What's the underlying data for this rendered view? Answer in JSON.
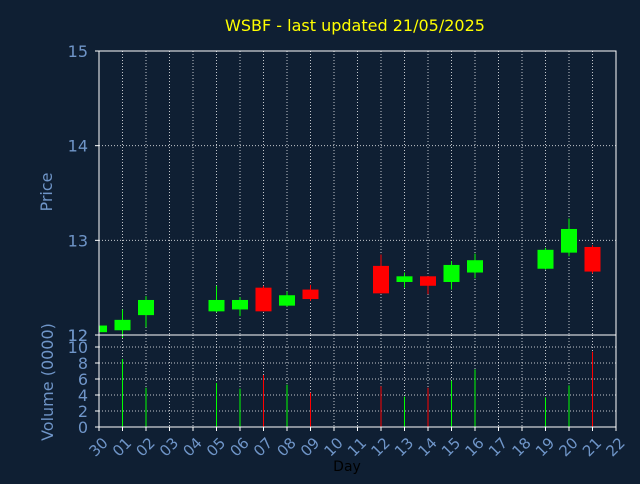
{
  "colors": {
    "background": "#0f1f33",
    "title": "#ffff00",
    "axis_text": "#6f95c8",
    "frame": "#ffffff",
    "grid": "#ffffff",
    "day_label": "#000000",
    "up": "#00ff00",
    "down": "#ff0000"
  },
  "chart_data": [
    {
      "type": "candlestick",
      "title": "WSBF - last updated 21/05/2025",
      "ylabel": "Price",
      "ylim": [
        12,
        15
      ],
      "yticks": [
        "12",
        "13",
        "14",
        "15"
      ],
      "xticks": [
        "30",
        "01",
        "02",
        "03",
        "04",
        "05",
        "06",
        "07",
        "08",
        "09",
        "10",
        "11",
        "12",
        "13",
        "14",
        "15",
        "16",
        "17",
        "18",
        "19",
        "20",
        "21",
        "22"
      ],
      "grid": true,
      "candles": [
        {
          "day": "30",
          "open": 12.03,
          "high": 12.1,
          "low": 12.01,
          "close": 12.1
        },
        {
          "day": "01",
          "open": 12.05,
          "high": 12.27,
          "low": 11.97,
          "close": 12.16
        },
        {
          "day": "02",
          "open": 12.21,
          "high": 12.41,
          "low": 12.08,
          "close": 12.37
        },
        {
          "day": "05",
          "open": 12.25,
          "high": 12.52,
          "low": 12.24,
          "close": 12.37
        },
        {
          "day": "06",
          "open": 12.27,
          "high": 12.4,
          "low": 12.2,
          "close": 12.37
        },
        {
          "day": "07",
          "open": 12.5,
          "high": 12.52,
          "low": 12.25,
          "close": 12.25
        },
        {
          "day": "08",
          "open": 12.31,
          "high": 12.46,
          "low": 12.3,
          "close": 12.42
        },
        {
          "day": "09",
          "open": 12.48,
          "high": 12.53,
          "low": 12.36,
          "close": 12.38
        },
        {
          "day": "12",
          "open": 12.73,
          "high": 12.85,
          "low": 12.44,
          "close": 12.44
        },
        {
          "day": "13",
          "open": 12.56,
          "high": 12.66,
          "low": 12.5,
          "close": 12.62
        },
        {
          "day": "14",
          "open": 12.62,
          "high": 12.62,
          "low": 12.43,
          "close": 12.52
        },
        {
          "day": "15",
          "open": 12.56,
          "high": 12.78,
          "low": 12.48,
          "close": 12.74
        },
        {
          "day": "16",
          "open": 12.66,
          "high": 12.86,
          "low": 12.6,
          "close": 12.79
        },
        {
          "day": "19",
          "open": 12.7,
          "high": 12.92,
          "low": 12.69,
          "close": 12.9
        },
        {
          "day": "20",
          "open": 12.87,
          "high": 13.23,
          "low": 12.83,
          "close": 13.12
        },
        {
          "day": "21",
          "open": 12.93,
          "high": 12.95,
          "low": 12.65,
          "close": 12.67
        }
      ]
    },
    {
      "type": "bar",
      "ylabel": "Volume (0000)",
      "xlabel": "Day",
      "ylim": [
        0,
        11.5
      ],
      "yticks": [
        "0",
        "2",
        "4",
        "6",
        "8",
        "10"
      ],
      "xticks": [
        "30",
        "01",
        "02",
        "03",
        "04",
        "05",
        "06",
        "07",
        "08",
        "09",
        "10",
        "11",
        "12",
        "13",
        "14",
        "15",
        "16",
        "17",
        "18",
        "19",
        "20",
        "21",
        "22"
      ],
      "top_label": "12",
      "grid": true,
      "volumes": [
        {
          "day": "01",
          "value": 8.5,
          "direction": "up"
        },
        {
          "day": "02",
          "value": 4.9,
          "direction": "up"
        },
        {
          "day": "05",
          "value": 5.5,
          "direction": "up"
        },
        {
          "day": "06",
          "value": 4.8,
          "direction": "up"
        },
        {
          "day": "07",
          "value": 6.5,
          "direction": "down"
        },
        {
          "day": "08",
          "value": 5.3,
          "direction": "up"
        },
        {
          "day": "09",
          "value": 4.3,
          "direction": "down"
        },
        {
          "day": "12",
          "value": 5.1,
          "direction": "down"
        },
        {
          "day": "13",
          "value": 3.8,
          "direction": "up"
        },
        {
          "day": "14",
          "value": 4.9,
          "direction": "down"
        },
        {
          "day": "15",
          "value": 5.8,
          "direction": "up"
        },
        {
          "day": "16",
          "value": 7.2,
          "direction": "up"
        },
        {
          "day": "19",
          "value": 3.7,
          "direction": "up"
        },
        {
          "day": "20",
          "value": 5.2,
          "direction": "up"
        },
        {
          "day": "21",
          "value": 9.4,
          "direction": "down"
        }
      ]
    }
  ]
}
